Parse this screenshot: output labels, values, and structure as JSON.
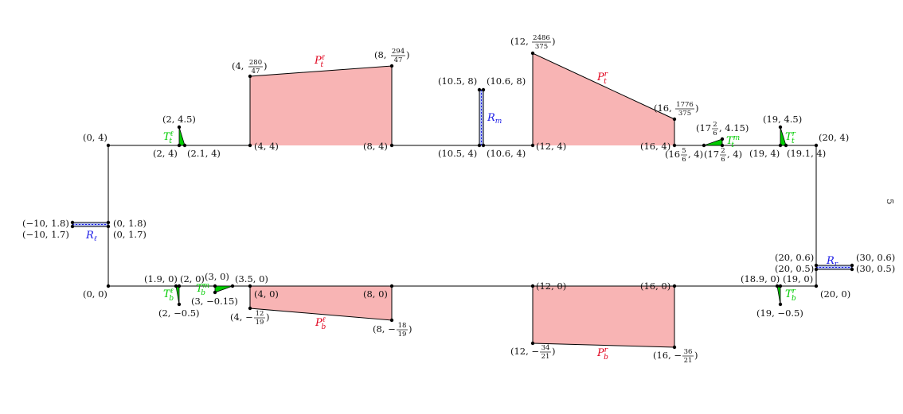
{
  "colors": {
    "pieces": "#f8b4b4",
    "pieces_label": "#e0001b",
    "triangles": "#00cc00",
    "rectangles": "#b8c4f8",
    "rectangles_label": "#1a1ae6",
    "outline": "#000000"
  },
  "pieces": {
    "top_left": {
      "sym": "P",
      "sup": "ℓ",
      "sub": "t"
    },
    "top_right": {
      "sym": "P",
      "sup": "r",
      "sub": "t"
    },
    "bottom_left": {
      "sym": "P",
      "sup": "ℓ",
      "sub": "b"
    },
    "bottom_right": {
      "sym": "P",
      "sup": "r",
      "sub": "b"
    }
  },
  "triangles": {
    "top_left": {
      "sym": "T",
      "sup": "ℓ",
      "sub": "t"
    },
    "top_middle": {
      "sym": "T",
      "sup": "m",
      "sub": "t"
    },
    "top_right": {
      "sym": "T",
      "sup": "r",
      "sub": "t"
    },
    "bottom_left": {
      "sym": "T",
      "sup": "ℓ",
      "sub": "b"
    },
    "bottom_middle": {
      "sym": "T",
      "sup": "m",
      "sub": "b"
    },
    "bottom_right": {
      "sym": "T",
      "sup": "r",
      "sub": "b"
    }
  },
  "rectangles": {
    "left": {
      "sym": "R",
      "sub": "ℓ"
    },
    "middle": {
      "sym": "R",
      "sub": "m"
    },
    "right": {
      "sym": "R",
      "sub": "r"
    }
  },
  "labels": {
    "p_0_4": "(0, 4)",
    "p_0_0": "(0, 0)",
    "p_0_1_8": "(0, 1.8)",
    "p_0_1_7": "(0, 1.7)",
    "p_m10_1_8": "(−10, 1.8)",
    "p_m10_1_7": "(−10, 1.7)",
    "p_2_4_5": "(2, 4.5)",
    "p_2_4": "(2, 4)",
    "p_2_1_4": "(2.1, 4)",
    "p_4_4": "(4, 4)",
    "p_4_top_pre": "(4, ",
    "p_4_top_num": "280",
    "p_4_top_den": "47",
    "p_8_top_pre": "(8, ",
    "p_8_top_num": "294",
    "p_8_top_den": "47",
    "p_8_4": "(8, 4)",
    "p_10_5_8": "(10.5, 8)",
    "p_10_6_8": "(10.6, 8)",
    "p_10_5_4": "(10.5, 4)",
    "p_10_6_4": "(10.6, 4)",
    "p_12_top_pre": "(12, ",
    "p_12_top_num": "2486",
    "p_12_top_den": "375",
    "p_12_4": "(12, 4)",
    "p_16_top_pre": "(16, ",
    "p_16_top_num": "1776",
    "p_16_top_den": "375",
    "p_16_4": "(16, 4)",
    "p_16_56_pre": "(16",
    "p_16_56_num": "5",
    "p_16_56_den": "6",
    "p_16_56_post": ", 4)",
    "p_17_26_415_pre": "(17",
    "p_17_26_415_num": "2",
    "p_17_26_415_den": "6",
    "p_17_26_415_post": ", 4.15)",
    "p_17_26_4_pre": "(17",
    "p_17_26_4_num": "2",
    "p_17_26_4_den": "6",
    "p_17_26_4_post": ", 4)",
    "p_19_4_5": "(19, 4.5)",
    "p_19_4": "(19, 4)",
    "p_19_1_4": "(19.1, 4)",
    "p_20_4": "(20, 4)",
    "p_20_0_6": "(20, 0.6)",
    "p_20_0_5": "(20, 0.5)",
    "p_30_0_6": "(30, 0.6)",
    "p_30_0_5": "(30, 0.5)",
    "p_20_0": "(20, 0)",
    "p_19_0": "(19, 0)",
    "p_18_9_0": "(18.9, 0)",
    "p_19_m0_5": "(19, −0.5)",
    "p_16_0": "(16, 0)",
    "p_16_bot_pre": "(16, −",
    "p_16_bot_num": "36",
    "p_16_bot_den": "21",
    "p_12_0": "(12, 0)",
    "p_12_bot_pre": "(12, −",
    "p_12_bot_num": "34",
    "p_12_bot_den": "21",
    "p_8_0": "(8, 0)",
    "p_8_bot_pre": "(8, −",
    "p_8_bot_num": "18",
    "p_8_bot_den": "19",
    "p_4_0": "(4, 0)",
    "p_4_bot_pre": "(4, −",
    "p_4_bot_num": "12",
    "p_4_bot_den": "19",
    "p_3_5_0": "(3.5, 0)",
    "p_3_0": "(3, 0)",
    "p_3_m0_15": "(3, −0.15)",
    "p_2_0": "(2, 0)",
    "p_1_9_0": "(1.9, 0)",
    "p_2_m0_5": "(2, −0.5)"
  },
  "page_number": "5"
}
